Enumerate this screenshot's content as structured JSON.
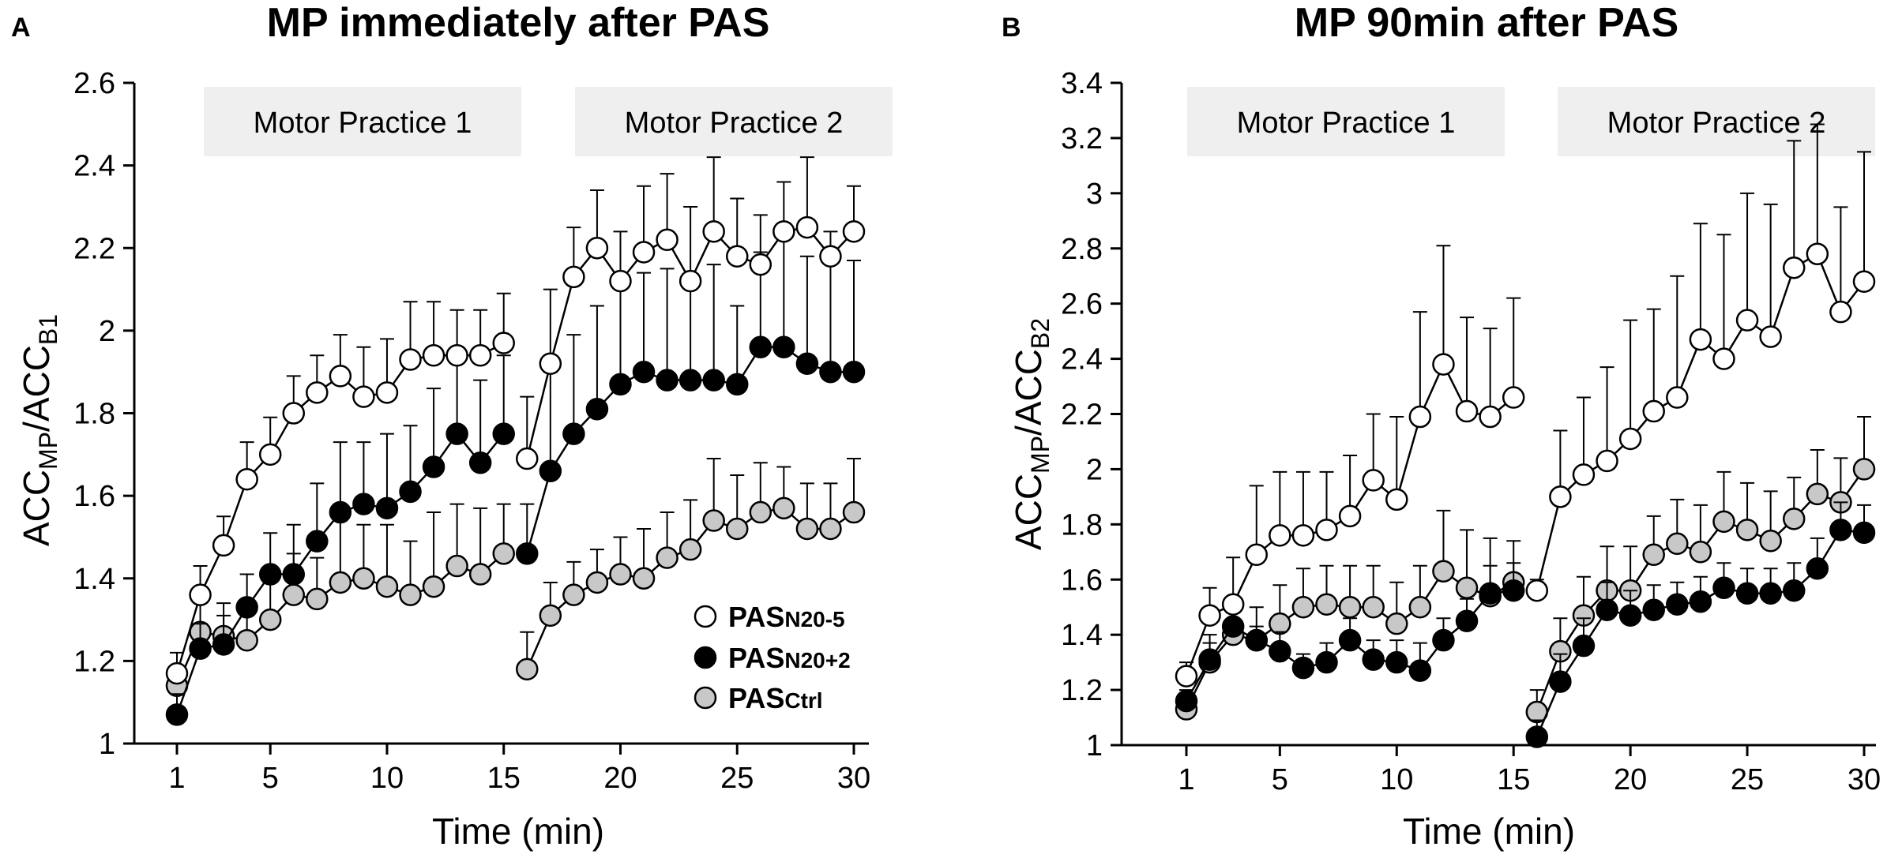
{
  "figure": {
    "colors": {
      "open": "#ffffff",
      "filled": "#000000",
      "gray": "#c8c8c8",
      "box": "#efefef",
      "ink": "#000000"
    },
    "legend": [
      {
        "key": "open",
        "main": "PAS",
        "sub": "N20-5"
      },
      {
        "key": "filled",
        "main": "PAS",
        "sub": "N20+2"
      },
      {
        "key": "gray",
        "main": "PAS",
        "sub": "Ctrl"
      }
    ]
  },
  "chart_data": [
    {
      "panel": "A",
      "type": "line",
      "title": "MP immediately after PAS",
      "xlabel": "Time (min)",
      "ylabel": {
        "main": "ACC",
        "sub1": "MP",
        "mid": "/ACC",
        "sub2": "B1"
      },
      "ylim": [
        1,
        2.6
      ],
      "yticks": [
        1,
        1.2,
        1.4,
        1.6,
        1.8,
        2,
        2.2,
        2.4,
        2.6
      ],
      "ytick_labels": [
        "1",
        "1.2",
        "1.4",
        "1.6",
        "1.8",
        "2",
        "2.2",
        "2.4",
        "2.6"
      ],
      "xlim": [
        0,
        31
      ],
      "xticks": [
        1,
        5,
        10,
        15,
        20,
        25,
        30
      ],
      "xtick_labels": [
        "1",
        "5",
        "10",
        "15",
        "20",
        "25",
        "30"
      ],
      "practice_labels": [
        "Motor Practice 1",
        "Motor Practice 2"
      ],
      "series": [
        {
          "name": "PASN20-5",
          "style": "open",
          "segments": [
            {
              "x": [
                1,
                2,
                3,
                4,
                5,
                6,
                7,
                8,
                9,
                10,
                11,
                12,
                13,
                14,
                15
              ],
              "y": [
                1.17,
                1.36,
                1.48,
                1.64,
                1.7,
                1.8,
                1.85,
                1.89,
                1.84,
                1.85,
                1.93,
                1.94,
                1.94,
                1.94,
                1.97
              ],
              "err": [
                0.05,
                0.07,
                0.07,
                0.09,
                0.09,
                0.09,
                0.09,
                0.1,
                0.12,
                0.13,
                0.14,
                0.13,
                0.11,
                0.11,
                0.12
              ]
            },
            {
              "x": [
                16,
                17,
                18,
                19,
                20,
                21,
                22,
                23,
                24,
                25,
                26,
                27,
                28,
                29,
                30
              ],
              "y": [
                1.69,
                1.92,
                2.13,
                2.2,
                2.12,
                2.19,
                2.22,
                2.12,
                2.24,
                2.18,
                2.16,
                2.24,
                2.25,
                2.18,
                2.24
              ],
              "err": [
                0.15,
                0.18,
                0.12,
                0.14,
                0.12,
                0.16,
                0.16,
                0.18,
                0.18,
                0.14,
                0.12,
                0.12,
                0.17,
                0.06,
                0.11
              ]
            }
          ]
        },
        {
          "name": "PASN20+2",
          "style": "filled",
          "segments": [
            {
              "x": [
                1,
                2,
                3,
                4,
                5,
                6,
                7,
                8,
                9,
                10,
                11,
                12,
                13,
                14,
                15
              ],
              "y": [
                1.07,
                1.23,
                1.24,
                1.33,
                1.41,
                1.41,
                1.49,
                1.56,
                1.58,
                1.57,
                1.61,
                1.67,
                1.75,
                1.68,
                1.75
              ],
              "err": [
                0.05,
                0.06,
                0.07,
                0.08,
                0.1,
                0.12,
                0.14,
                0.17,
                0.15,
                0.18,
                0.16,
                0.19,
                0.2,
                0.2,
                0.19
              ]
            },
            {
              "x": [
                16,
                17,
                18,
                19,
                20,
                21,
                22,
                23,
                24,
                25,
                26,
                27,
                28,
                29,
                30
              ],
              "y": [
                1.46,
                1.66,
                1.75,
                1.81,
                1.87,
                1.9,
                1.88,
                1.88,
                1.88,
                1.87,
                1.96,
                1.96,
                1.92,
                1.9,
                1.9
              ],
              "err": [
                0.12,
                0.24,
                0.24,
                0.25,
                0.24,
                0.24,
                0.27,
                0.25,
                0.28,
                0.19,
                0.23,
                0.3,
                0.26,
                0.28,
                0.27
              ]
            }
          ]
        },
        {
          "name": "PASCtrl",
          "style": "gray",
          "segments": [
            {
              "x": [
                1,
                2,
                3,
                4,
                5,
                6,
                7,
                8,
                9,
                10,
                11,
                12,
                13,
                14,
                15
              ],
              "y": [
                1.14,
                1.27,
                1.26,
                1.25,
                1.3,
                1.36,
                1.35,
                1.39,
                1.4,
                1.38,
                1.36,
                1.38,
                1.43,
                1.41,
                1.46
              ],
              "err": [
                0.04,
                0.07,
                0.08,
                0.08,
                0.1,
                0.1,
                0.1,
                0.15,
                0.13,
                0.15,
                0.13,
                0.18,
                0.15,
                0.16,
                0.12
              ]
            },
            {
              "x": [
                16,
                17,
                18,
                19,
                20,
                21,
                22,
                23,
                24,
                25,
                26,
                27,
                28,
                29,
                30
              ],
              "y": [
                1.18,
                1.31,
                1.36,
                1.39,
                1.41,
                1.4,
                1.45,
                1.47,
                1.54,
                1.52,
                1.56,
                1.57,
                1.52,
                1.52,
                1.56
              ],
              "err": [
                0.09,
                0.08,
                0.08,
                0.08,
                0.09,
                0.12,
                0.11,
                0.12,
                0.15,
                0.13,
                0.12,
                0.1,
                0.11,
                0.11,
                0.13
              ]
            }
          ]
        }
      ]
    },
    {
      "panel": "B",
      "type": "line",
      "title": "MP 90min after PAS",
      "xlabel": "Time (min)",
      "ylabel": {
        "main": "ACC",
        "sub1": "MP",
        "mid": "/ACC",
        "sub2": "B2"
      },
      "ylim": [
        1,
        3.4
      ],
      "yticks": [
        1,
        1.2,
        1.4,
        1.6,
        1.8,
        2,
        2.2,
        2.4,
        2.6,
        2.8,
        3,
        3.2,
        3.4
      ],
      "ytick_labels": [
        "1",
        "1.2",
        "1.4",
        "1.6",
        "1.8",
        "2",
        "2.2",
        "2.4",
        "2.6",
        "2.8",
        "3",
        "3.2",
        "3.4"
      ],
      "xlim": [
        0,
        31
      ],
      "xticks": [
        1,
        5,
        10,
        15,
        20,
        25,
        30
      ],
      "xtick_labels": [
        "1",
        "5",
        "10",
        "15",
        "20",
        "25",
        "30"
      ],
      "practice_labels": [
        "Motor Practice 1",
        "Motor Practice 2"
      ],
      "series": [
        {
          "name": "PASN20-5",
          "style": "open",
          "segments": [
            {
              "x": [
                1,
                2,
                3,
                4,
                5,
                6,
                7,
                8,
                9,
                10,
                11,
                12,
                13,
                14,
                15
              ],
              "y": [
                1.25,
                1.47,
                1.51,
                1.69,
                1.76,
                1.76,
                1.78,
                1.83,
                1.96,
                1.89,
                2.19,
                2.38,
                2.21,
                2.19,
                2.26
              ],
              "err": [
                0.05,
                0.1,
                0.17,
                0.25,
                0.23,
                0.23,
                0.21,
                0.22,
                0.24,
                0.3,
                0.38,
                0.43,
                0.34,
                0.32,
                0.36
              ]
            },
            {
              "x": [
                16,
                17,
                18,
                19,
                20,
                21,
                22,
                23,
                24,
                25,
                26,
                27,
                28,
                29,
                30
              ],
              "y": [
                1.56,
                1.9,
                1.98,
                2.03,
                2.11,
                2.21,
                2.26,
                2.47,
                2.4,
                2.54,
                2.48,
                2.73,
                2.78,
                2.57,
                2.68
              ],
              "err": [
                0.04,
                0.24,
                0.28,
                0.34,
                0.43,
                0.37,
                0.44,
                0.42,
                0.45,
                0.46,
                0.48,
                0.46,
                0.47,
                0.38,
                0.47
              ]
            }
          ]
        },
        {
          "name": "PASN20+2",
          "style": "filled",
          "segments": [
            {
              "x": [
                1,
                2,
                3,
                4,
                5,
                6,
                7,
                8,
                9,
                10,
                11,
                12,
                13,
                14,
                15
              ],
              "y": [
                1.16,
                1.31,
                1.43,
                1.38,
                1.34,
                1.28,
                1.3,
                1.38,
                1.31,
                1.3,
                1.27,
                1.38,
                1.45,
                1.55,
                1.56
              ],
              "err": [
                0.04,
                0.06,
                0.05,
                0.05,
                0.07,
                0.05,
                0.07,
                0.08,
                0.07,
                0.08,
                0.1,
                0.08,
                0.08,
                0.1,
                0.1
              ]
            },
            {
              "x": [
                16,
                17,
                18,
                19,
                20,
                21,
                22,
                23,
                24,
                25,
                26,
                27,
                28,
                29,
                30
              ],
              "y": [
                1.03,
                1.23,
                1.36,
                1.49,
                1.47,
                1.49,
                1.51,
                1.52,
                1.57,
                1.55,
                1.55,
                1.56,
                1.64,
                1.78,
                1.77
              ],
              "err": [
                0.06,
                0.1,
                0.1,
                0.1,
                0.09,
                0.09,
                0.08,
                0.09,
                0.09,
                0.09,
                0.09,
                0.1,
                0.11,
                0.1,
                0.1
              ]
            }
          ]
        },
        {
          "name": "PASCtrl",
          "style": "gray",
          "segments": [
            {
              "x": [
                1,
                2,
                3,
                4,
                5,
                6,
                7,
                8,
                9,
                10,
                11,
                12,
                13,
                14,
                15
              ],
              "y": [
                1.13,
                1.3,
                1.4,
                1.38,
                1.44,
                1.5,
                1.51,
                1.5,
                1.5,
                1.44,
                1.5,
                1.63,
                1.57,
                1.54,
                1.59
              ],
              "err": [
                0.04,
                0.1,
                0.12,
                0.12,
                0.14,
                0.14,
                0.14,
                0.15,
                0.15,
                0.15,
                0.15,
                0.22,
                0.21,
                0.21,
                0.15
              ]
            },
            {
              "x": [
                16,
                17,
                18,
                19,
                20,
                21,
                22,
                23,
                24,
                25,
                26,
                27,
                28,
                29,
                30
              ],
              "y": [
                1.12,
                1.34,
                1.47,
                1.56,
                1.56,
                1.69,
                1.73,
                1.7,
                1.81,
                1.78,
                1.74,
                1.82,
                1.91,
                1.88,
                2.0
              ],
              "err": [
                0.08,
                0.12,
                0.14,
                0.16,
                0.16,
                0.14,
                0.16,
                0.17,
                0.18,
                0.17,
                0.18,
                0.15,
                0.16,
                0.16,
                0.19
              ]
            }
          ]
        }
      ]
    }
  ]
}
